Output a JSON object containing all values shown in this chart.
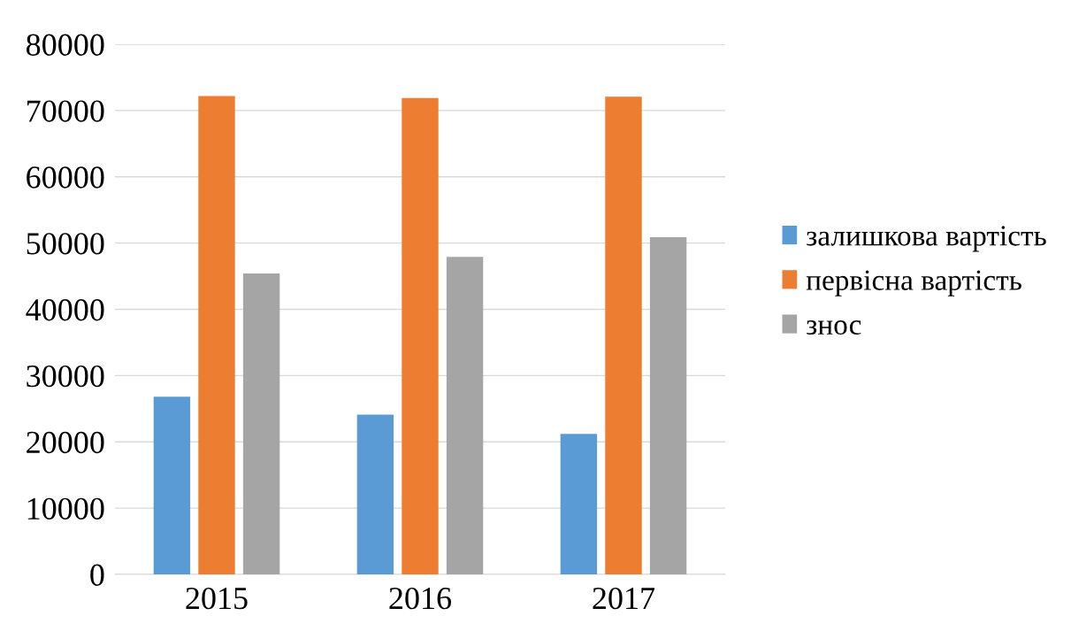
{
  "chart_data": {
    "type": "bar",
    "categories": [
      "2015",
      "2016",
      "2017"
    ],
    "series": [
      {
        "name": "залишкова вартість",
        "color": "#5b9bd5",
        "values": [
          26800,
          24100,
          21200
        ]
      },
      {
        "name": "первісна вартість",
        "color": "#ed7d31",
        "values": [
          72200,
          71900,
          72100
        ]
      },
      {
        "name": "знос",
        "color": "#a5a5a5",
        "values": [
          45400,
          47900,
          50900
        ]
      }
    ],
    "ylim": [
      0,
      80000
    ],
    "yticks": [
      0,
      10000,
      20000,
      30000,
      40000,
      50000,
      60000,
      70000,
      80000
    ],
    "grid": "y",
    "legend": "right"
  }
}
